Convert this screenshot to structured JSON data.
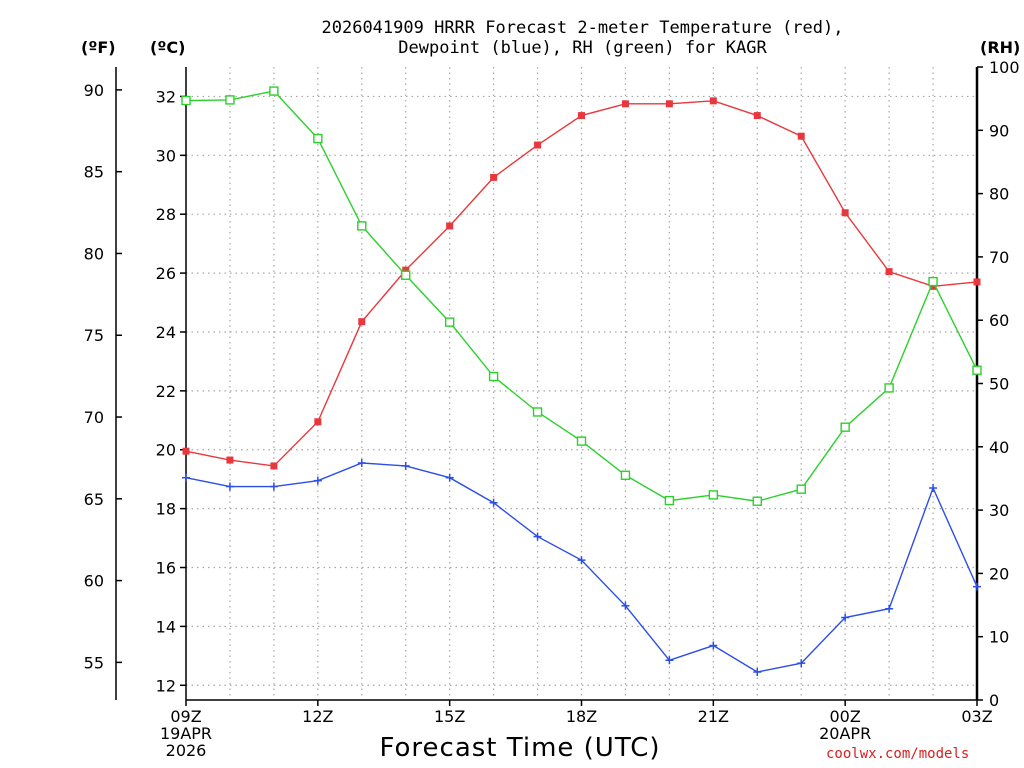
{
  "title_line1": "2026041909 HRRR Forecast 2-meter Temperature (red),",
  "title_line2": "Dewpoint (blue), RH (green) for KAGR",
  "unit_f": "(ºF)",
  "unit_c": "(ºC)",
  "unit_rh": "(RH)",
  "credit": "coolwx.com/models",
  "chart_data": {
    "type": "line",
    "title": "2026041909 HRRR Forecast 2-meter Temperature (red), Dewpoint (blue), RH (green) for KAGR",
    "xlabel": "Forecast Time (UTC)",
    "ylabel_left": "°C",
    "ylabel_far_left": "°F",
    "ylabel_right": "RH",
    "x_hours": [
      0,
      1,
      2,
      3,
      4,
      5,
      6,
      7,
      8,
      9,
      10,
      11,
      12,
      13,
      14,
      15,
      16,
      17,
      18
    ],
    "x_range": [
      0,
      18
    ],
    "x_ticks": [
      {
        "hour": 0,
        "lines": [
          "09Z",
          "19APR",
          "2026"
        ]
      },
      {
        "hour": 3,
        "lines": [
          "12Z"
        ]
      },
      {
        "hour": 6,
        "lines": [
          "15Z"
        ]
      },
      {
        "hour": 9,
        "lines": [
          "18Z"
        ]
      },
      {
        "hour": 12,
        "lines": [
          "21Z"
        ]
      },
      {
        "hour": 15,
        "lines": [
          "00Z",
          "20APR"
        ]
      },
      {
        "hour": 18,
        "lines": [
          "03Z"
        ]
      }
    ],
    "c_range": [
      11.5,
      33
    ],
    "c_ticks": [
      "12",
      "14",
      "16",
      "18",
      "20",
      "22",
      "24",
      "26",
      "28",
      "30",
      "32"
    ],
    "f_ticks": [
      "55",
      "60",
      "65",
      "70",
      "75",
      "80",
      "85",
      "90"
    ],
    "rh_range": [
      0,
      100
    ],
    "rh_ticks": [
      "0",
      "10",
      "20",
      "30",
      "40",
      "50",
      "60",
      "70",
      "80",
      "90",
      "100"
    ],
    "grid": true,
    "series": [
      {
        "name": "Temperature",
        "units": "C",
        "color": "#e8383d",
        "marker": "filled-square",
        "values": [
          19.95,
          19.65,
          19.45,
          20.95,
          24.35,
          26.1,
          27.6,
          29.25,
          30.35,
          31.35,
          31.75,
          31.75,
          31.85,
          31.35,
          30.65,
          28.05,
          26.05,
          25.55,
          25.7
        ]
      },
      {
        "name": "Dewpoint",
        "units": "C",
        "color": "#2c4ee8",
        "marker": "plus",
        "values": [
          19.05,
          18.75,
          18.75,
          18.95,
          19.55,
          19.45,
          19.05,
          18.2,
          17.05,
          16.25,
          14.7,
          12.85,
          13.35,
          12.45,
          12.75,
          14.3,
          14.6,
          18.7,
          15.35
        ]
      },
      {
        "name": "RH",
        "units": "%",
        "color": "#2bd12b",
        "marker": "open-square",
        "values": [
          94.7,
          94.8,
          96.2,
          88.7,
          74.9,
          67.1,
          59.7,
          51.1,
          45.5,
          40.9,
          35.5,
          31.5,
          32.4,
          31.4,
          33.3,
          43.1,
          49.3,
          66.1,
          52.1
        ]
      }
    ]
  }
}
